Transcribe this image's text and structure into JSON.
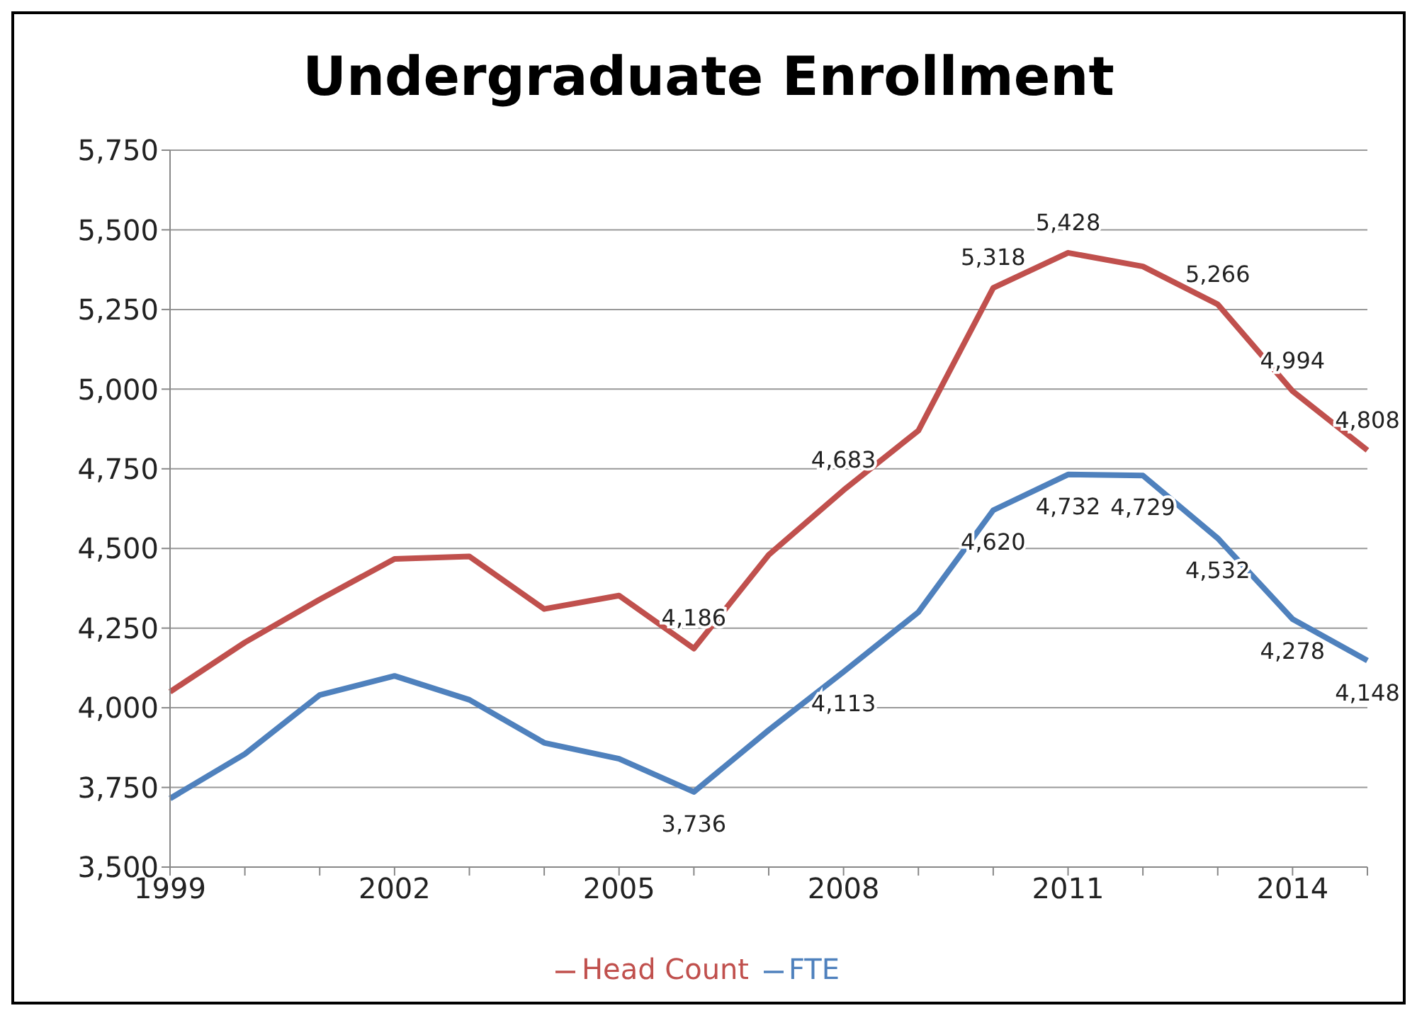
{
  "chart_data": {
    "type": "line",
    "title": "Undergraduate Enrollment",
    "categories": [
      "1999",
      null,
      null,
      "2002",
      null,
      null,
      "2005",
      null,
      null,
      "2008",
      null,
      null,
      "2011",
      null,
      null,
      "2014",
      null
    ],
    "series": [
      {
        "name": "Head Count",
        "color": "#c0504d",
        "values": [
          4050,
          4205,
          4340,
          4467,
          4475,
          4310,
          4352,
          4186,
          4480,
          4683,
          4870,
          5318,
          5428,
          5385,
          5266,
          4994,
          4808
        ],
        "value_labels": [
          null,
          null,
          null,
          null,
          null,
          null,
          null,
          "4,186",
          null,
          "4,683",
          null,
          "5,318",
          "5,428",
          null,
          "5,266",
          "4,994",
          "4,808"
        ]
      },
      {
        "name": "FTE",
        "color": "#4f81bd",
        "values": [
          3715,
          3855,
          4040,
          4100,
          4025,
          3890,
          3840,
          3736,
          3930,
          4113,
          4300,
          4620,
          4732,
          4729,
          4532,
          4278,
          4148
        ],
        "value_labels": [
          null,
          null,
          null,
          null,
          null,
          null,
          null,
          "3,736",
          null,
          "4,113",
          null,
          "4,620",
          "4,732",
          "4,729",
          "4,532",
          "4,278",
          "4,148"
        ]
      }
    ],
    "ylim": [
      3500,
      5750
    ],
    "yticks": [
      {
        "value": 3500,
        "label": "3,500"
      },
      {
        "value": 3750,
        "label": "3,750"
      },
      {
        "value": 4000,
        "label": "4,000"
      },
      {
        "value": 4250,
        "label": "4,250"
      },
      {
        "value": 4500,
        "label": "4,500"
      },
      {
        "value": 4750,
        "label": "4,750"
      },
      {
        "value": 5000,
        "label": "5,000"
      },
      {
        "value": 5250,
        "label": "5,250"
      },
      {
        "value": 5500,
        "label": "5,500"
      },
      {
        "value": 5750,
        "label": "5,750"
      }
    ],
    "grid": "y",
    "legend": "bottom",
    "marker": "none",
    "line_style": "solid"
  }
}
